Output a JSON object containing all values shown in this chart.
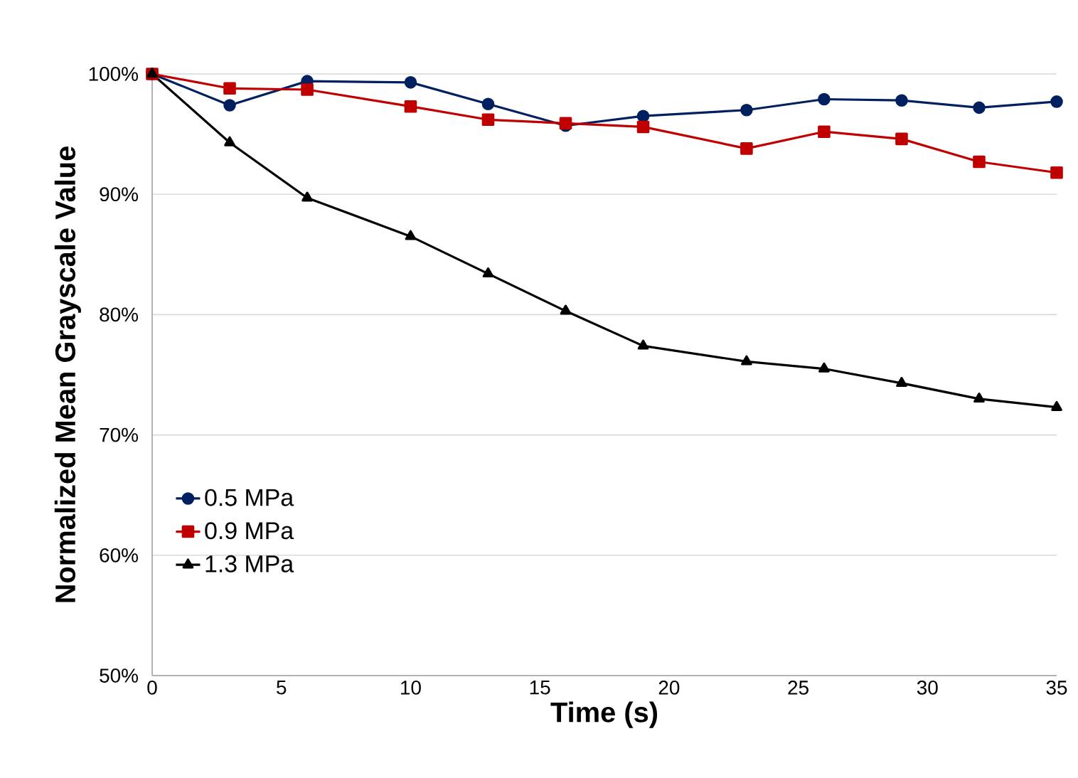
{
  "chart_data": {
    "type": "line",
    "xlabel": "Time (s)",
    "ylabel": "Normalized Mean Grayscale Value",
    "xlim": [
      0,
      35
    ],
    "xticks": [
      0,
      5,
      10,
      15,
      20,
      25,
      30,
      35
    ],
    "ylim": [
      50,
      100
    ],
    "yticks": [
      {
        "value": 50,
        "label": "50%"
      },
      {
        "value": 60,
        "label": "60%"
      },
      {
        "value": 70,
        "label": "70%"
      },
      {
        "value": 80,
        "label": "80%"
      },
      {
        "value": 90,
        "label": "90%"
      },
      {
        "value": 100,
        "label": "100%"
      }
    ],
    "grid": "y",
    "legend": "bottom left",
    "line_style": "solid",
    "x": [
      0,
      3,
      6,
      10,
      13,
      16,
      19,
      23,
      26,
      29,
      32,
      35
    ],
    "series": [
      {
        "name": "0.5 MPa",
        "color": "#002060",
        "marker": "circle",
        "values": [
          100,
          97.4,
          99.4,
          99.3,
          97.5,
          95.7,
          96.5,
          97.0,
          97.9,
          97.8,
          97.2,
          97.7
        ]
      },
      {
        "name": "0.9 MPa",
        "color": "#c00000",
        "marker": "square",
        "values": [
          100,
          98.8,
          98.7,
          97.3,
          96.2,
          95.9,
          95.6,
          93.8,
          95.2,
          94.6,
          92.7,
          91.8
        ]
      },
      {
        "name": "1.3 MPa",
        "color": "#000000",
        "marker": "triangle",
        "values": [
          100,
          94.3,
          89.7,
          86.5,
          83.4,
          80.3,
          77.4,
          76.1,
          75.5,
          74.3,
          73.0,
          72.3
        ]
      }
    ]
  }
}
